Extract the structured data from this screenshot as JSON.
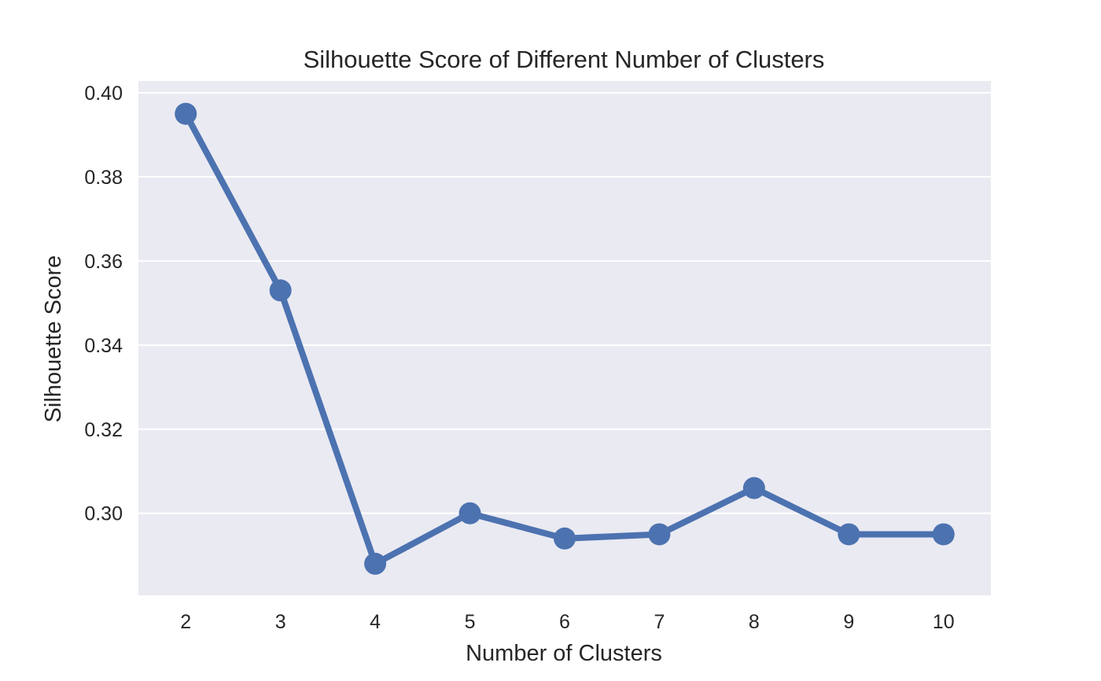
{
  "chart_data": {
    "type": "line",
    "title": "Silhouette Score of Different Number of Clusters",
    "xlabel": "Number of Clusters",
    "ylabel": "Silhouette Score",
    "x": [
      "2",
      "3",
      "4",
      "5",
      "6",
      "7",
      "8",
      "9",
      "10"
    ],
    "series": [
      {
        "values": [
          0.395,
          0.353,
          0.288,
          0.3,
          0.294,
          0.295,
          0.306,
          0.295,
          0.295
        ]
      }
    ],
    "yticks": [
      "0.30",
      "0.32",
      "0.34",
      "0.36",
      "0.38",
      "0.40"
    ],
    "ylim": [
      0.2805,
      0.4028
    ],
    "grid": "horizontal",
    "legend": "none",
    "colors": {
      "plot_background": "#eaeaf2",
      "series": "#4c72b0",
      "grid": "#ffffff",
      "text": "#262626"
    }
  }
}
